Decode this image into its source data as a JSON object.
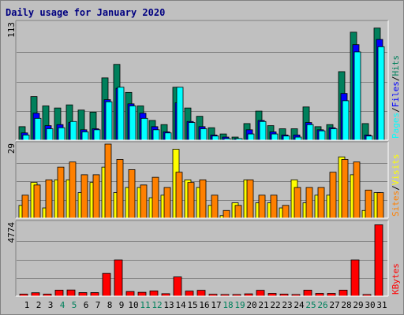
{
  "title": "Daily usage for January 2020",
  "colors": {
    "hits": "#00805c",
    "files": "#0000ff",
    "pages": "#00ffff",
    "visits": "#ffff00",
    "sites": "#ff8000",
    "kbytes": "#ff0000",
    "weekday_label": "#000000",
    "weekend_label": "#00805c",
    "panel_bg": "#c0c0c0",
    "grid": "#808080"
  },
  "chart_data": [
    {
      "type": "bar",
      "panel": "hits-files-pages",
      "categories": [
        "1",
        "2",
        "3",
        "4",
        "5",
        "6",
        "7",
        "8",
        "9",
        "10",
        "11",
        "12",
        "13",
        "14",
        "15",
        "16",
        "17",
        "18",
        "19",
        "20",
        "21",
        "22",
        "23",
        "24",
        "25",
        "26",
        "27",
        "28",
        "29",
        "30",
        "31"
      ],
      "ymax_label": "113",
      "ylim": [
        0,
        113
      ],
      "legend": [
        "Pages",
        "/",
        "Files",
        "/",
        "Hits"
      ],
      "series": [
        {
          "name": "Hits",
          "values": [
            13,
            42,
            33,
            31,
            34,
            29,
            27,
            60,
            73,
            46,
            33,
            19,
            15,
            51,
            31,
            23,
            12,
            6,
            3,
            16,
            28,
            14,
            11,
            11,
            32,
            13,
            15,
            66,
            104,
            16,
            108
          ]
        },
        {
          "name": "Files",
          "values": [
            7,
            26,
            14,
            15,
            17,
            10,
            11,
            39,
            50,
            35,
            26,
            13,
            8,
            36,
            18,
            13,
            5,
            3,
            1,
            10,
            19,
            8,
            5,
            5,
            17,
            10,
            12,
            45,
            92,
            5,
            97
          ]
        },
        {
          "name": "Pages",
          "values": [
            5,
            21,
            11,
            12,
            18,
            8,
            10,
            37,
            51,
            33,
            21,
            10,
            7,
            51,
            17,
            11,
            4,
            1,
            1,
            6,
            18,
            6,
            4,
            3,
            15,
            9,
            11,
            38,
            85,
            4,
            90
          ]
        }
      ]
    },
    {
      "type": "bar",
      "panel": "visits-sites",
      "categories": [
        "1",
        "2",
        "3",
        "4",
        "5",
        "6",
        "7",
        "8",
        "9",
        "10",
        "11",
        "12",
        "13",
        "14",
        "15",
        "16",
        "17",
        "18",
        "19",
        "20",
        "21",
        "22",
        "23",
        "24",
        "25",
        "26",
        "27",
        "28",
        "29",
        "30",
        "31"
      ],
      "ymax_label": "29",
      "ylim": [
        0,
        29
      ],
      "legend": [
        "Sites",
        "/",
        "Visits"
      ],
      "series": [
        {
          "name": "Visits",
          "values": [
            5,
            14,
            4,
            15,
            15,
            10,
            14,
            20,
            10,
            12,
            12,
            8,
            9,
            27,
            15,
            12,
            5,
            1,
            6,
            15,
            6,
            6,
            4,
            15,
            6,
            9,
            9,
            24,
            17,
            3,
            10
          ]
        },
        {
          "name": "Sites",
          "values": [
            9,
            13,
            15,
            20,
            22,
            17,
            17,
            29,
            23,
            19,
            13,
            16,
            12,
            18,
            14,
            15,
            9,
            3,
            5,
            15,
            9,
            9,
            5,
            12,
            12,
            12,
            18,
            23,
            22,
            11,
            10
          ]
        }
      ]
    },
    {
      "type": "bar",
      "panel": "kbytes",
      "categories": [
        "1",
        "2",
        "3",
        "4",
        "5",
        "6",
        "7",
        "8",
        "9",
        "10",
        "11",
        "12",
        "13",
        "14",
        "15",
        "16",
        "17",
        "18",
        "19",
        "20",
        "21",
        "22",
        "23",
        "24",
        "25",
        "26",
        "27",
        "28",
        "29",
        "30",
        "31"
      ],
      "ymax_label": "4774",
      "ylim": [
        0,
        4774
      ],
      "legend": [
        "KBytes"
      ],
      "series": [
        {
          "name": "KBytes",
          "values": [
            130,
            220,
            130,
            390,
            400,
            230,
            230,
            1480,
            2360,
            300,
            250,
            340,
            160,
            1250,
            330,
            380,
            120,
            50,
            30,
            150,
            380,
            180,
            130,
            80,
            390,
            180,
            180,
            390,
            2360,
            60,
            4650
          ]
        }
      ]
    }
  ]
}
